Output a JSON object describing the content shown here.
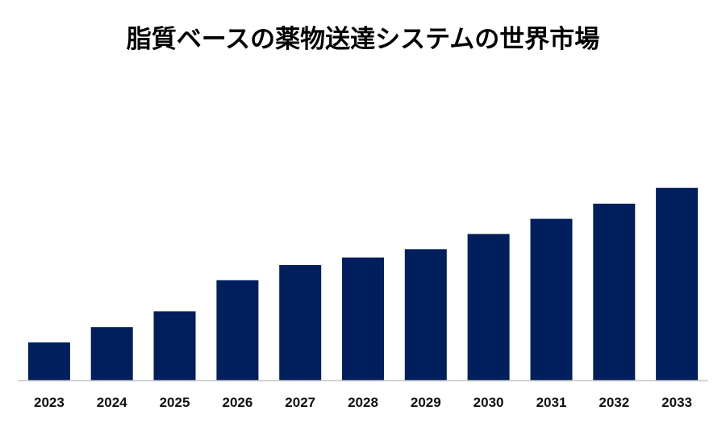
{
  "chart_data": {
    "type": "bar",
    "title": "脂質ベースの薬物送達システムの世界市場",
    "xlabel": "",
    "ylabel": "",
    "categories": [
      "2023",
      "2024",
      "2025",
      "2026",
      "2027",
      "2028",
      "2029",
      "2030",
      "2031",
      "2032",
      "2033"
    ],
    "values": [
      50,
      70,
      91,
      132,
      152,
      162,
      173,
      193,
      213,
      233,
      254
    ],
    "ylim": [
      0,
      270
    ],
    "grid": false,
    "legend": "none",
    "bar_color": "#001f5c",
    "axis_color": "#c8c8c8"
  }
}
